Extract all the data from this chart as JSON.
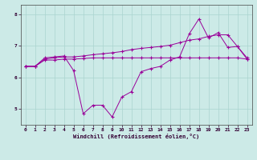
{
  "xlabel": "Windchill (Refroidissement éolien,°C)",
  "background_color": "#cceae7",
  "grid_color": "#aad4d0",
  "line_color": "#990099",
  "xlim": [
    -0.5,
    23.5
  ],
  "ylim": [
    4.5,
    8.3
  ],
  "yticks": [
    5,
    6,
    7,
    8
  ],
  "xticks": [
    0,
    1,
    2,
    3,
    4,
    5,
    6,
    7,
    8,
    9,
    10,
    11,
    12,
    13,
    14,
    15,
    16,
    17,
    18,
    19,
    20,
    21,
    22,
    23
  ],
  "x": [
    0,
    1,
    2,
    3,
    4,
    5,
    6,
    7,
    8,
    9,
    10,
    11,
    12,
    13,
    14,
    15,
    16,
    17,
    18,
    19,
    20,
    21,
    22,
    23
  ],
  "s1": [
    6.35,
    6.35,
    6.55,
    6.55,
    6.58,
    6.58,
    6.6,
    6.62,
    6.62,
    6.62,
    6.62,
    6.62,
    6.62,
    6.62,
    6.62,
    6.62,
    6.62,
    6.62,
    6.62,
    6.62,
    6.62,
    6.62,
    6.62,
    6.58
  ],
  "s2": [
    6.35,
    6.35,
    6.58,
    6.62,
    6.65,
    6.65,
    6.68,
    6.72,
    6.75,
    6.78,
    6.82,
    6.88,
    6.92,
    6.95,
    6.98,
    7.02,
    7.1,
    7.18,
    7.22,
    7.3,
    7.35,
    7.35,
    6.98,
    6.62
  ],
  "s3": [
    6.35,
    6.35,
    6.62,
    6.65,
    6.68,
    6.22,
    4.85,
    5.12,
    5.12,
    4.75,
    5.38,
    5.55,
    6.18,
    6.28,
    6.35,
    6.55,
    6.65,
    7.38,
    7.85,
    7.25,
    7.42,
    6.95,
    6.98,
    6.58
  ],
  "marker": "+"
}
